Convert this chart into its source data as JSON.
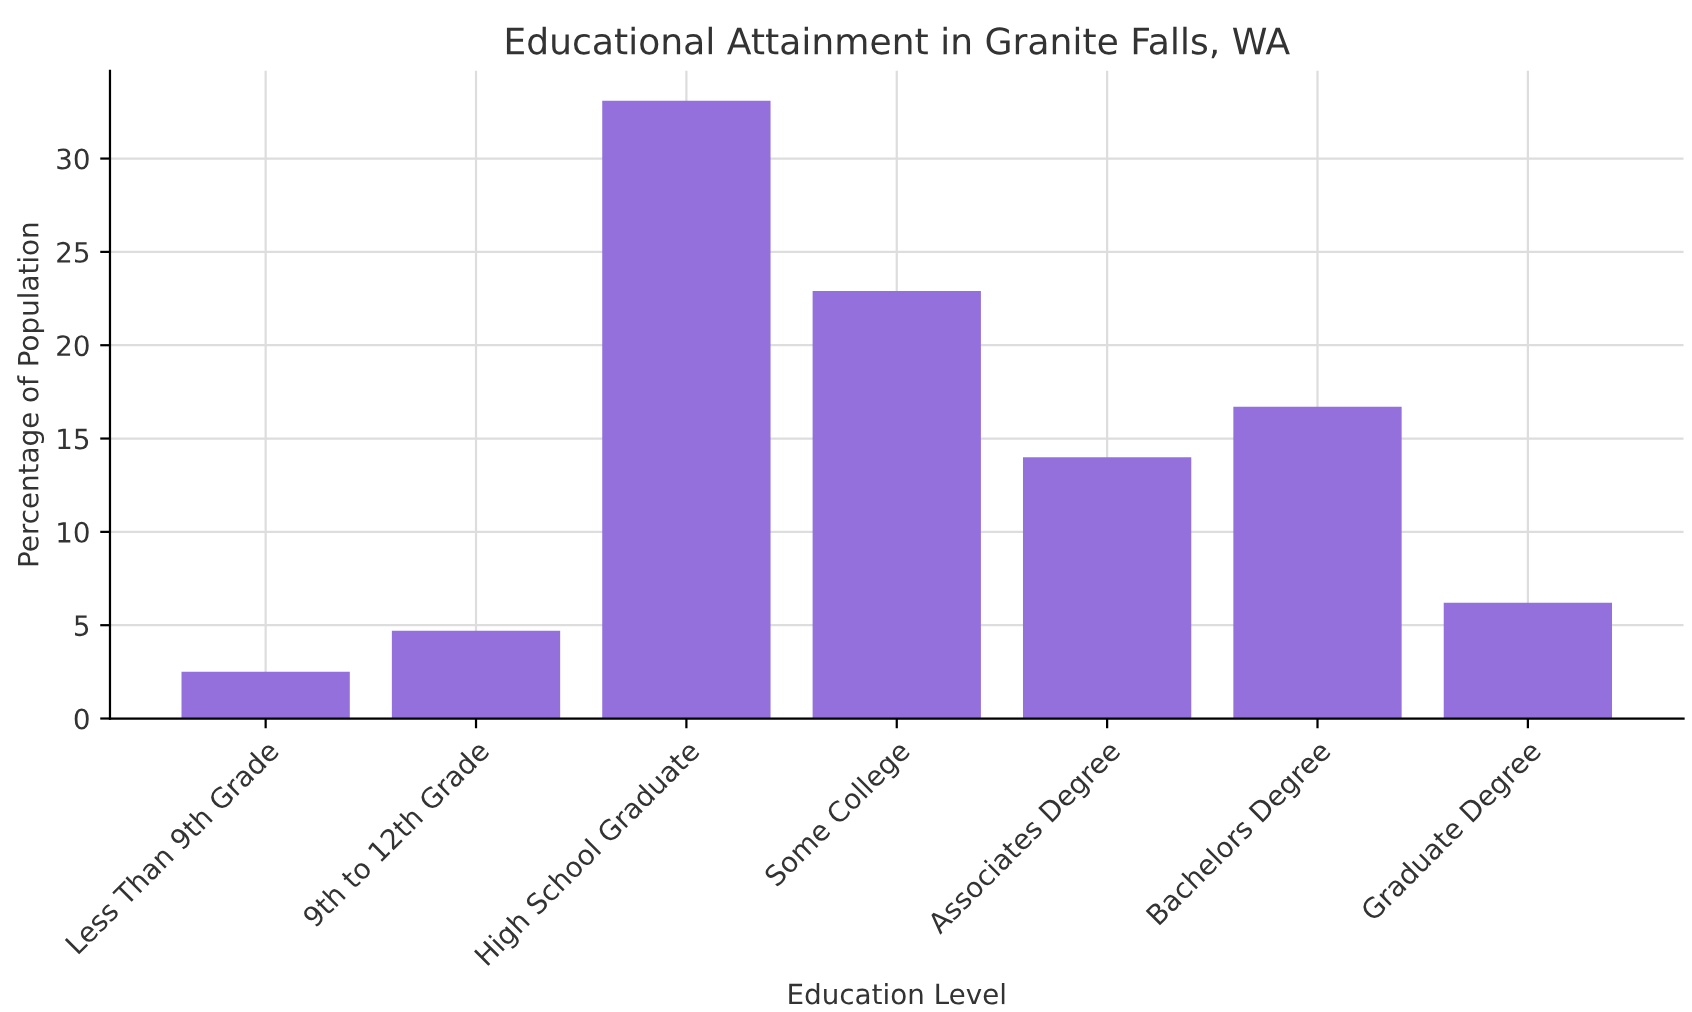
{
  "chart_data": {
    "type": "bar",
    "title": "Educational Attainment in Granite Falls, WA",
    "xlabel": "Education Level",
    "ylabel": "Percentage of Population",
    "categories": [
      "Less Than 9th Grade",
      "9th to 12th Grade",
      "High School Graduate",
      "Some College",
      "Associates Degree",
      "Bachelors Degree",
      "Graduate Degree"
    ],
    "values": [
      2.5,
      4.7,
      33.1,
      22.9,
      14.0,
      16.7,
      6.2
    ],
    "color": "#9370db",
    "ylim": [
      0,
      34.7
    ],
    "yticks": [
      0,
      5,
      10,
      15,
      20,
      25,
      30
    ],
    "grid": true,
    "legend": false
  }
}
